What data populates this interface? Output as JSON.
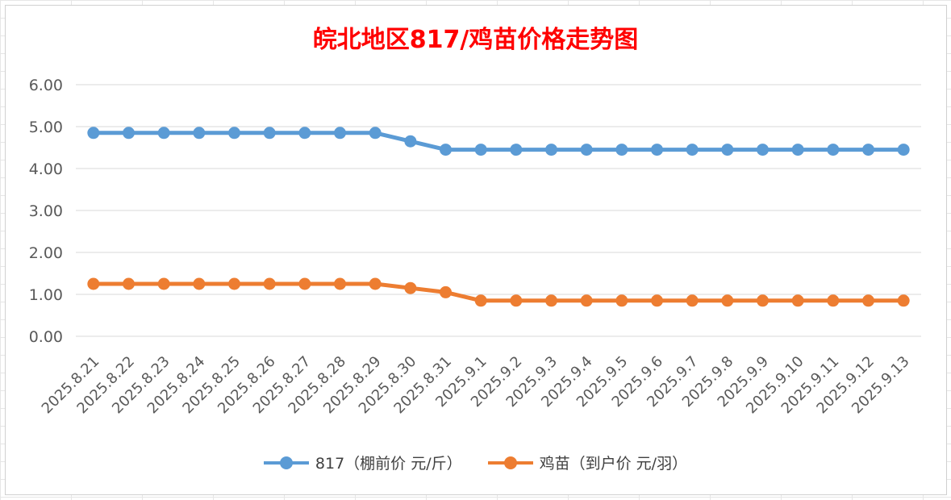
{
  "chart_data": {
    "type": "line",
    "title": "皖北地区817/鸡苗价格走势图",
    "categories": [
      "2025.8.21",
      "2025.8.22",
      "2025.8.23",
      "2025.8.24",
      "2025.8.25",
      "2025.8.26",
      "2025.8.27",
      "2025.8.28",
      "2025.8.29",
      "2025.8.30",
      "2025.8.31",
      "2025.9.1",
      "2025.9.2",
      "2025.9.3",
      "2025.9.4",
      "2025.9.5",
      "2025.9.6",
      "2025.9.7",
      "2025.9.8",
      "2025.9.9",
      "2025.9.10",
      "2025.9.11",
      "2025.9.12",
      "2025.9.13"
    ],
    "y_ticks": [
      "0.00",
      "1.00",
      "2.00",
      "3.00",
      "4.00",
      "5.00",
      "6.00"
    ],
    "ylim": [
      0,
      6
    ],
    "grid": true,
    "legend_position": "bottom",
    "series": [
      {
        "name": "817（棚前价 元/斤）",
        "color": "#5b9bd5",
        "values": [
          4.85,
          4.85,
          4.85,
          4.85,
          4.85,
          4.85,
          4.85,
          4.85,
          4.85,
          4.65,
          4.45,
          4.45,
          4.45,
          4.45,
          4.45,
          4.45,
          4.45,
          4.45,
          4.45,
          4.45,
          4.45,
          4.45,
          4.45,
          4.45
        ]
      },
      {
        "name": "鸡苗（到户价 元/羽）",
        "color": "#ed7d31",
        "values": [
          1.25,
          1.25,
          1.25,
          1.25,
          1.25,
          1.25,
          1.25,
          1.25,
          1.25,
          1.15,
          1.05,
          0.85,
          0.85,
          0.85,
          0.85,
          0.85,
          0.85,
          0.85,
          0.85,
          0.85,
          0.85,
          0.85,
          0.85,
          0.85
        ]
      }
    ]
  }
}
